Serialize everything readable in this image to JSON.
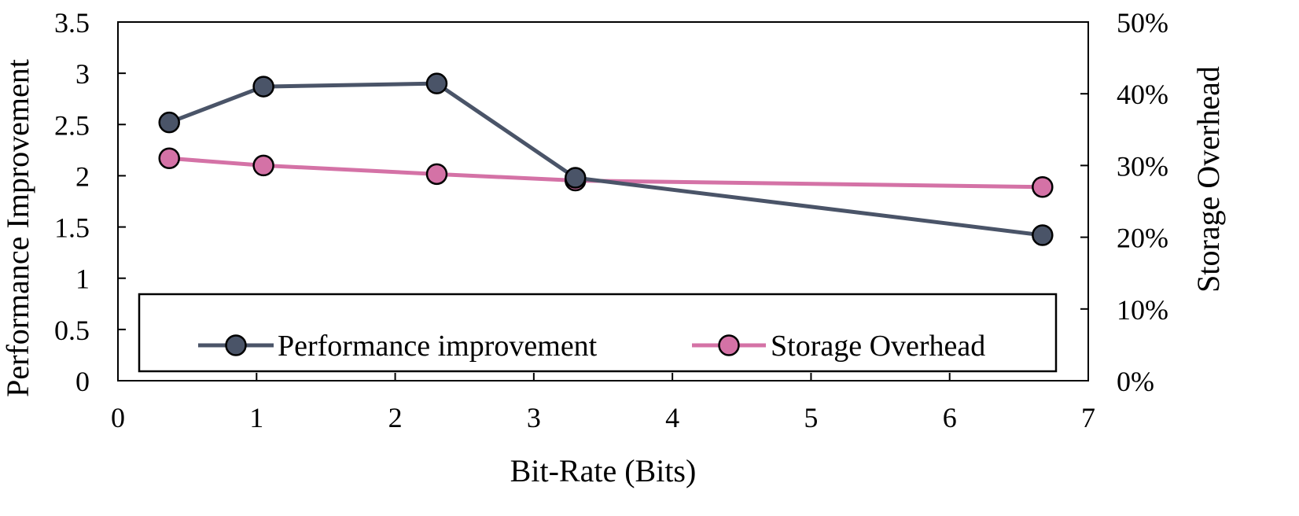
{
  "chart_data": {
    "type": "line",
    "title": "",
    "xlabel": "Bit-Rate (Bits)",
    "ylabel": "Performance Improvement",
    "y2label": "Storage Overhead",
    "xlim": [
      0,
      7
    ],
    "ylim": [
      0,
      3.5
    ],
    "y2lim": [
      0,
      50
    ],
    "x_ticks": [
      0,
      1,
      2,
      3,
      4,
      5,
      6,
      7
    ],
    "x_tick_labels": [
      "0",
      "1",
      "2",
      "3",
      "4",
      "5",
      "6",
      "7"
    ],
    "y_ticks": [
      0,
      0.5,
      1,
      1.5,
      2,
      2.5,
      3,
      3.5
    ],
    "y_tick_labels": [
      "0",
      "0.5",
      "1",
      "1.5",
      "2",
      "2.5",
      "3",
      "3.5"
    ],
    "y2_ticks": [
      0,
      10,
      20,
      30,
      40,
      50
    ],
    "y2_tick_labels": [
      "0%",
      "10%",
      "20%",
      "30%",
      "40%",
      "50%"
    ],
    "grid": false,
    "legend_position": "lower-center",
    "series": [
      {
        "name": "Performance improvement",
        "axis": "left",
        "color": "#4a5468",
        "x": [
          0.37,
          1.05,
          2.3,
          3.3,
          6.67
        ],
        "values": [
          2.52,
          2.87,
          2.9,
          1.98,
          1.42
        ]
      },
      {
        "name": "Storage Overhead",
        "axis": "right",
        "color": "#d472a6",
        "x": [
          0.37,
          1.05,
          2.3,
          3.3,
          6.67
        ],
        "values": [
          31,
          30,
          28.8,
          27.9,
          27
        ]
      }
    ]
  }
}
